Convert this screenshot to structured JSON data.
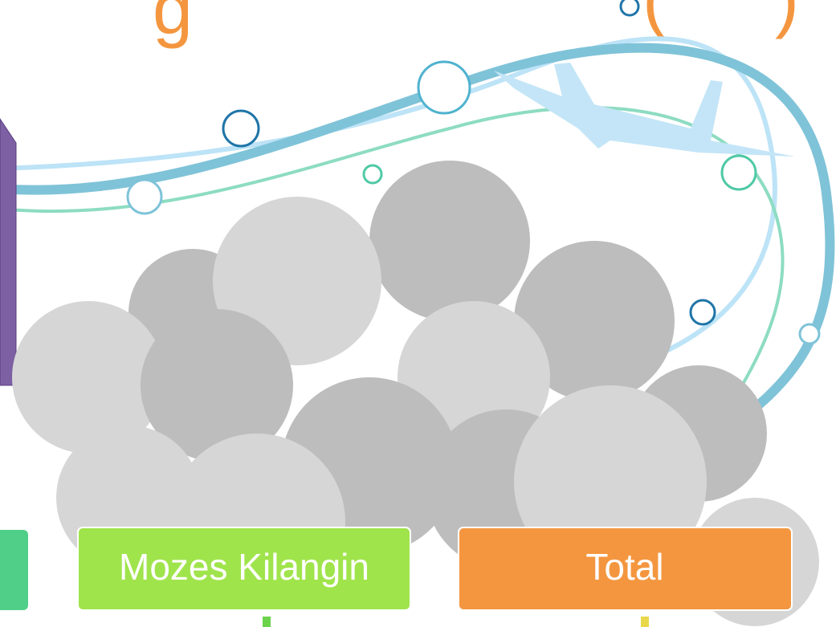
{
  "title_fragments": [
    "g",
    "(",
    ")"
  ],
  "boxes": [
    {
      "label": "Mozes Kilangin"
    },
    {
      "label": "Total"
    }
  ]
}
